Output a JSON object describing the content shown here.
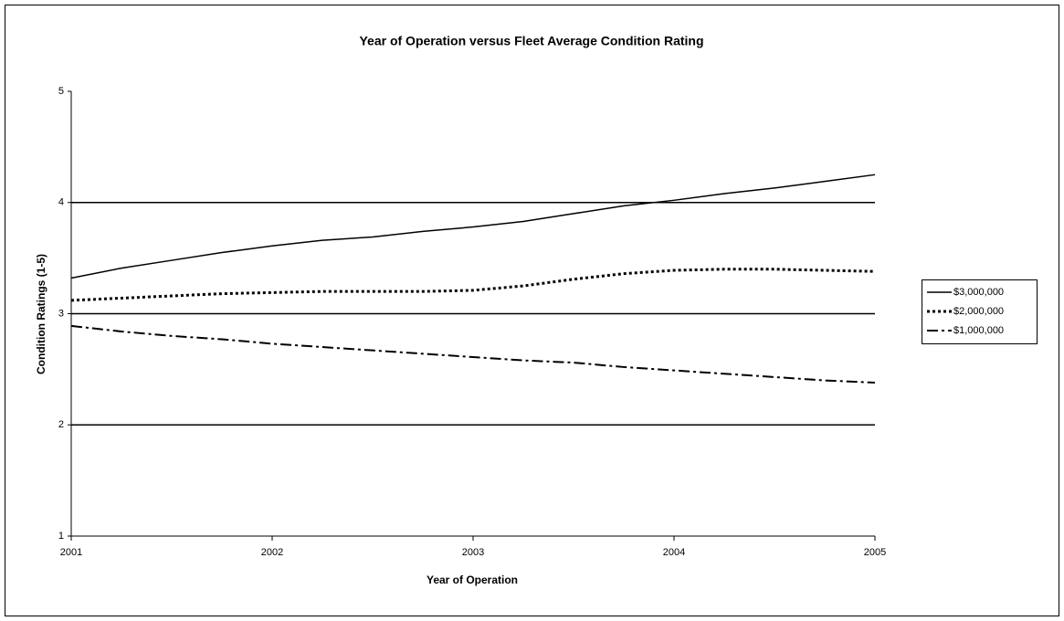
{
  "chart_data": {
    "type": "line",
    "title": "Year of Operation versus Fleet Average Condition Rating",
    "x_label": "Year of Operation",
    "y_label": "Condition Ratings (1-5)",
    "x": [
      2001,
      2001.25,
      2001.5,
      2001.75,
      2002,
      2002.25,
      2002.5,
      2002.75,
      2003,
      2003.25,
      2003.5,
      2003.75,
      2004,
      2004.25,
      2004.5,
      2004.75,
      2005
    ],
    "series": [
      {
        "name": "$3,000,000",
        "color": "#000000",
        "dash": "solid",
        "values": [
          3.32,
          3.41,
          3.48,
          3.55,
          3.61,
          3.66,
          3.69,
          3.74,
          3.78,
          3.83,
          3.9,
          3.97,
          4.02,
          4.08,
          4.13,
          4.19,
          4.25
        ]
      },
      {
        "name": "$2,000,000",
        "color": "#000000",
        "dash": "dotted",
        "values": [
          3.12,
          3.14,
          3.16,
          3.18,
          3.19,
          3.2,
          3.2,
          3.2,
          3.21,
          3.25,
          3.31,
          3.36,
          3.39,
          3.4,
          3.4,
          3.39,
          3.38
        ]
      },
      {
        "name": "$1,000,000",
        "color": "#000000",
        "dash": "dashdot",
        "values": [
          2.89,
          2.84,
          2.8,
          2.77,
          2.73,
          2.7,
          2.67,
          2.64,
          2.61,
          2.58,
          2.56,
          2.52,
          2.49,
          2.46,
          2.43,
          2.4,
          2.38
        ]
      }
    ],
    "xlim": [
      2001,
      2005
    ],
    "xticks": [
      2001,
      2002,
      2003,
      2004,
      2005
    ],
    "ylim": [
      1,
      5
    ],
    "yticks": [
      1,
      2,
      3,
      4,
      5
    ],
    "grid": true,
    "legend": "right"
  }
}
